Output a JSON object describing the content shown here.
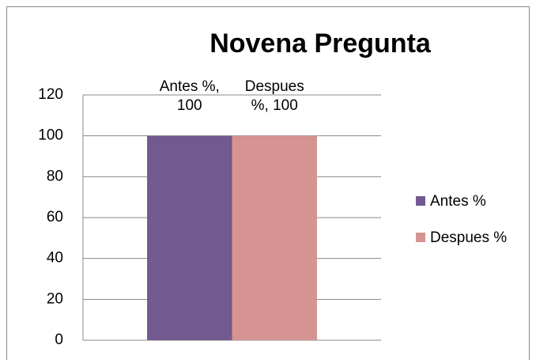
{
  "chart_data": {
    "type": "bar",
    "title": "Novena Pregunta",
    "categories": [
      null
    ],
    "series": [
      {
        "name": "Antes %",
        "color": "#725990",
        "values": [
          100
        ],
        "value_labels": [
          "Antes %, 100"
        ]
      },
      {
        "name": "Despues %",
        "color": "#d59391",
        "values": [
          100
        ],
        "value_labels": [
          "Despues %, 100"
        ]
      }
    ],
    "ylim": [
      0,
      120
    ],
    "yticks": [
      0,
      20,
      40,
      60,
      80,
      100,
      120
    ],
    "grid": true,
    "legend": "right"
  }
}
